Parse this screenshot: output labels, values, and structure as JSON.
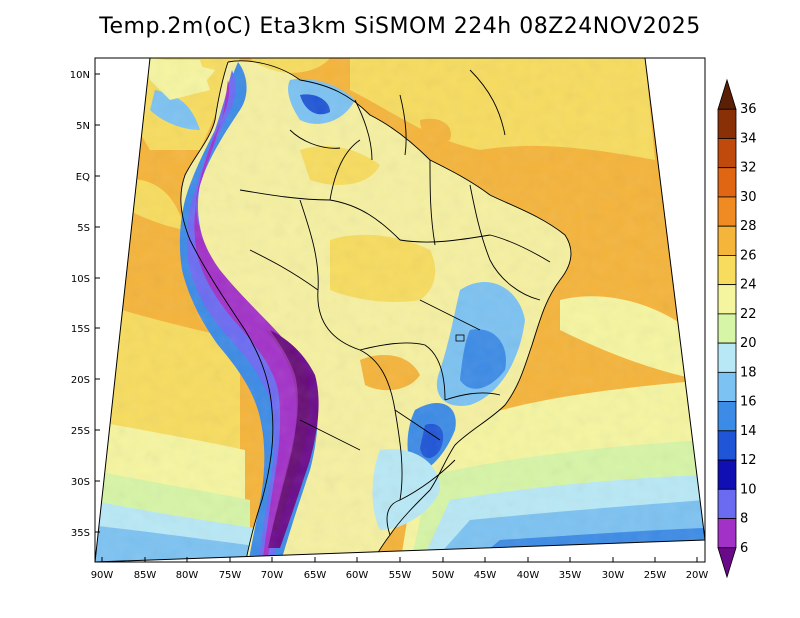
{
  "title": "Temp.2m(oC) Eta3km SiSMOM 224h 08Z24NOV2025",
  "lat_labels": [
    "10N",
    "5N",
    "EQ",
    "5S",
    "10S",
    "15S",
    "20S",
    "25S",
    "30S",
    "35S"
  ],
  "lon_labels": [
    "90W",
    "85W",
    "80W",
    "75W",
    "70W",
    "65W",
    "60W",
    "55W",
    "50W",
    "45W",
    "40W",
    "35W",
    "30W",
    "25W",
    "20W"
  ],
  "colorbar": {
    "levels": [
      "6",
      "8",
      "10",
      "12",
      "14",
      "16",
      "18",
      "20",
      "22",
      "24",
      "26",
      "28",
      "30",
      "32",
      "34",
      "36"
    ],
    "colors": [
      "#6a0a8a",
      "#a231c8",
      "#6b6bf2",
      "#0f0fb3",
      "#1f55d6",
      "#3c8be6",
      "#7cc2f2",
      "#b8e8f5",
      "#d6f5a6",
      "#f5f5a0",
      "#f7dc5e",
      "#f5b43a",
      "#f08a22",
      "#e06614",
      "#c04a0c",
      "#8a3006",
      "#5a1f04"
    ]
  },
  "palette": {
    "ocean_pacific": "#f5b43a",
    "ocean_atlantic": "#f7b03c",
    "land": "#f5f0a0"
  }
}
